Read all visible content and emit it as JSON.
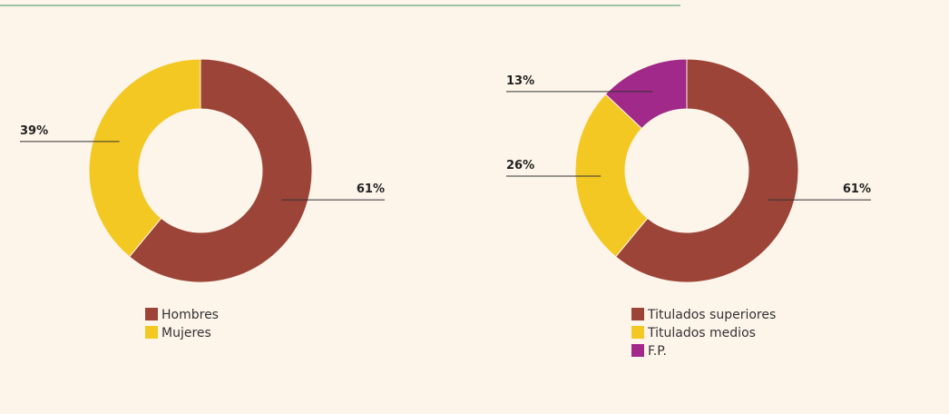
{
  "chart_data": [
    {
      "type": "pie",
      "categories": [
        "Hombres",
        "Mujeres"
      ],
      "values": [
        61,
        39
      ],
      "value_labels": [
        "61%",
        "39%"
      ],
      "colors": [
        "#9b4437",
        "#f4c823"
      ],
      "legend": true
    },
    {
      "type": "pie",
      "categories": [
        "Titulados superiores",
        "Titulados medios",
        "F.P."
      ],
      "values": [
        61,
        26,
        13
      ],
      "value_labels": [
        "61%",
        "26%",
        "13%"
      ],
      "colors": [
        "#9b4437",
        "#f4c823",
        "#a0298a"
      ],
      "legend": true
    }
  ]
}
